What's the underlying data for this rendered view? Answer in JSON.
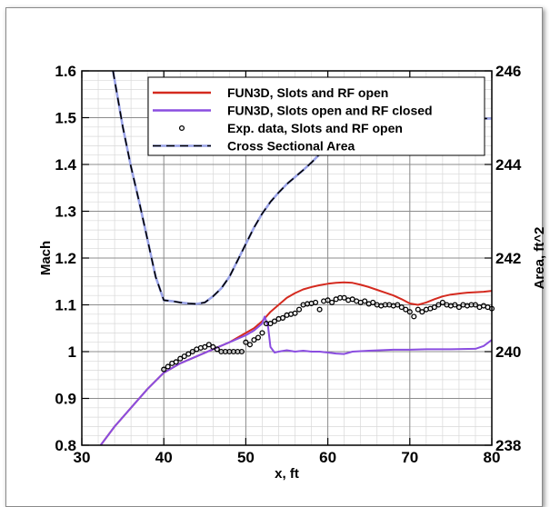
{
  "chart_data": {
    "type": "line",
    "xlabel": "x, ft",
    "ylabel": "Mach",
    "y2label": "Area, ft^2",
    "xlim": [
      30,
      80
    ],
    "ylim": [
      0.8,
      1.6
    ],
    "y2lim": [
      238,
      246
    ],
    "xticks": [
      "30",
      "40",
      "50",
      "60",
      "70",
      "80"
    ],
    "yticks": [
      "0.8",
      "0.9",
      "1",
      "1.1",
      "1.2",
      "1.3",
      "1.4",
      "1.5",
      "1.6"
    ],
    "y2ticks": [
      "238",
      "240",
      "242",
      "244",
      "246"
    ],
    "grid": true,
    "legend_position": "top-right",
    "series": [
      {
        "name": "FUN3D, Slots and RF open",
        "color": "#d42a1f",
        "style": "solid",
        "axis": "left",
        "x": [
          32.3,
          34,
          36,
          38,
          40,
          42,
          44,
          46,
          48,
          50,
          51,
          52,
          53,
          54,
          55,
          56,
          57,
          58,
          59,
          60,
          61,
          62,
          63,
          64,
          65,
          66,
          67,
          68,
          69,
          70,
          71,
          72,
          73,
          74,
          75,
          76,
          77,
          78,
          79,
          80
        ],
        "y": [
          0.8,
          0.84,
          0.88,
          0.92,
          0.955,
          0.975,
          0.99,
          1.005,
          1.02,
          1.04,
          1.05,
          1.065,
          1.085,
          1.1,
          1.115,
          1.125,
          1.133,
          1.138,
          1.142,
          1.145,
          1.147,
          1.148,
          1.147,
          1.143,
          1.138,
          1.132,
          1.126,
          1.12,
          1.112,
          1.103,
          1.1,
          1.105,
          1.112,
          1.118,
          1.122,
          1.124,
          1.126,
          1.127,
          1.128,
          1.13
        ]
      },
      {
        "name": "FUN3D, Slots open and RF closed",
        "color": "#8a4de0",
        "style": "solid",
        "axis": "left",
        "x": [
          32.3,
          34,
          36,
          38,
          40,
          42,
          44,
          46,
          48,
          50,
          51,
          52,
          52.3,
          52.7,
          53,
          53.5,
          54,
          55,
          56,
          57,
          58,
          59,
          60,
          61,
          62,
          63,
          65,
          68,
          70,
          72,
          75,
          78,
          79,
          80
        ],
        "y": [
          0.8,
          0.84,
          0.88,
          0.92,
          0.955,
          0.975,
          0.99,
          1.005,
          1.02,
          1.035,
          1.045,
          1.06,
          1.075,
          1.055,
          1.01,
          0.998,
          1.0,
          1.003,
          1.0,
          1.002,
          1.0,
          1.0,
          0.998,
          0.996,
          0.995,
          1.0,
          1.002,
          1.004,
          1.004,
          1.005,
          1.005,
          1.006,
          1.012,
          1.025
        ]
      },
      {
        "name": "Exp. data, Slots and RF open",
        "color": "#000000",
        "style": "markers",
        "axis": "left",
        "x": [
          40,
          40.5,
          41,
          41.5,
          42,
          42.5,
          43,
          43.5,
          44,
          44.5,
          45,
          45.5,
          46,
          46.5,
          47,
          47.5,
          48,
          48.5,
          49,
          49.5,
          50,
          50.5,
          51,
          51.5,
          52,
          52.5,
          53,
          53.5,
          54,
          54.5,
          55,
          55.5,
          56,
          56.5,
          57,
          57.5,
          58,
          58.5,
          59,
          59.5,
          60,
          60.5,
          61,
          61.5,
          62,
          62.5,
          63,
          63.5,
          64,
          64.5,
          65,
          65.5,
          66,
          66.5,
          67,
          67.5,
          68,
          68.5,
          69,
          69.5,
          70,
          70.5,
          71,
          71.5,
          72,
          72.5,
          73,
          73.5,
          74,
          74.5,
          75,
          75.5,
          76,
          76.5,
          77,
          77.5,
          78,
          78.5,
          79,
          79.5,
          80
        ],
        "y": [
          0.962,
          0.968,
          0.975,
          0.978,
          0.985,
          0.99,
          0.995,
          1.0,
          1.005,
          1.008,
          1.01,
          1.015,
          1.01,
          1.005,
          1.0,
          1.0,
          1.0,
          1.0,
          1.0,
          1.0,
          1.02,
          1.015,
          1.025,
          1.03,
          1.04,
          1.06,
          1.06,
          1.065,
          1.07,
          1.072,
          1.078,
          1.08,
          1.082,
          1.09,
          1.1,
          1.102,
          1.103,
          1.105,
          1.09,
          1.108,
          1.11,
          1.105,
          1.112,
          1.115,
          1.115,
          1.11,
          1.112,
          1.108,
          1.105,
          1.108,
          1.102,
          1.105,
          1.1,
          1.098,
          1.1,
          1.1,
          1.098,
          1.1,
          1.095,
          1.09,
          1.085,
          1.075,
          1.09,
          1.085,
          1.09,
          1.092,
          1.095,
          1.1,
          1.105,
          1.1,
          1.098,
          1.1,
          1.095,
          1.1,
          1.098,
          1.1,
          1.1,
          1.095,
          1.098,
          1.095,
          1.092
        ]
      },
      {
        "name": "Cross Sectional Area",
        "color": "#9aa3e8",
        "style": "dashed",
        "axis": "right",
        "x": [
          33.8,
          34.5,
          35,
          36,
          37,
          38,
          39,
          40,
          41,
          42,
          43,
          44,
          45,
          46,
          47,
          48,
          49,
          50,
          51,
          52,
          53,
          54,
          55,
          56,
          57,
          58,
          59,
          60,
          61,
          62,
          63,
          64,
          65,
          70,
          75,
          80
        ],
        "y": [
          246,
          245.3,
          244.8,
          243.95,
          243.2,
          242.4,
          241.6,
          241.1,
          241.08,
          241.05,
          241.03,
          241.02,
          241.05,
          241.18,
          241.35,
          241.6,
          241.95,
          242.3,
          242.65,
          242.95,
          243.2,
          243.4,
          243.58,
          243.73,
          243.88,
          244.04,
          244.22,
          244.42,
          244.62,
          244.82,
          244.95,
          244.98,
          244.98,
          244.98,
          244.98,
          244.98
        ]
      }
    ]
  }
}
